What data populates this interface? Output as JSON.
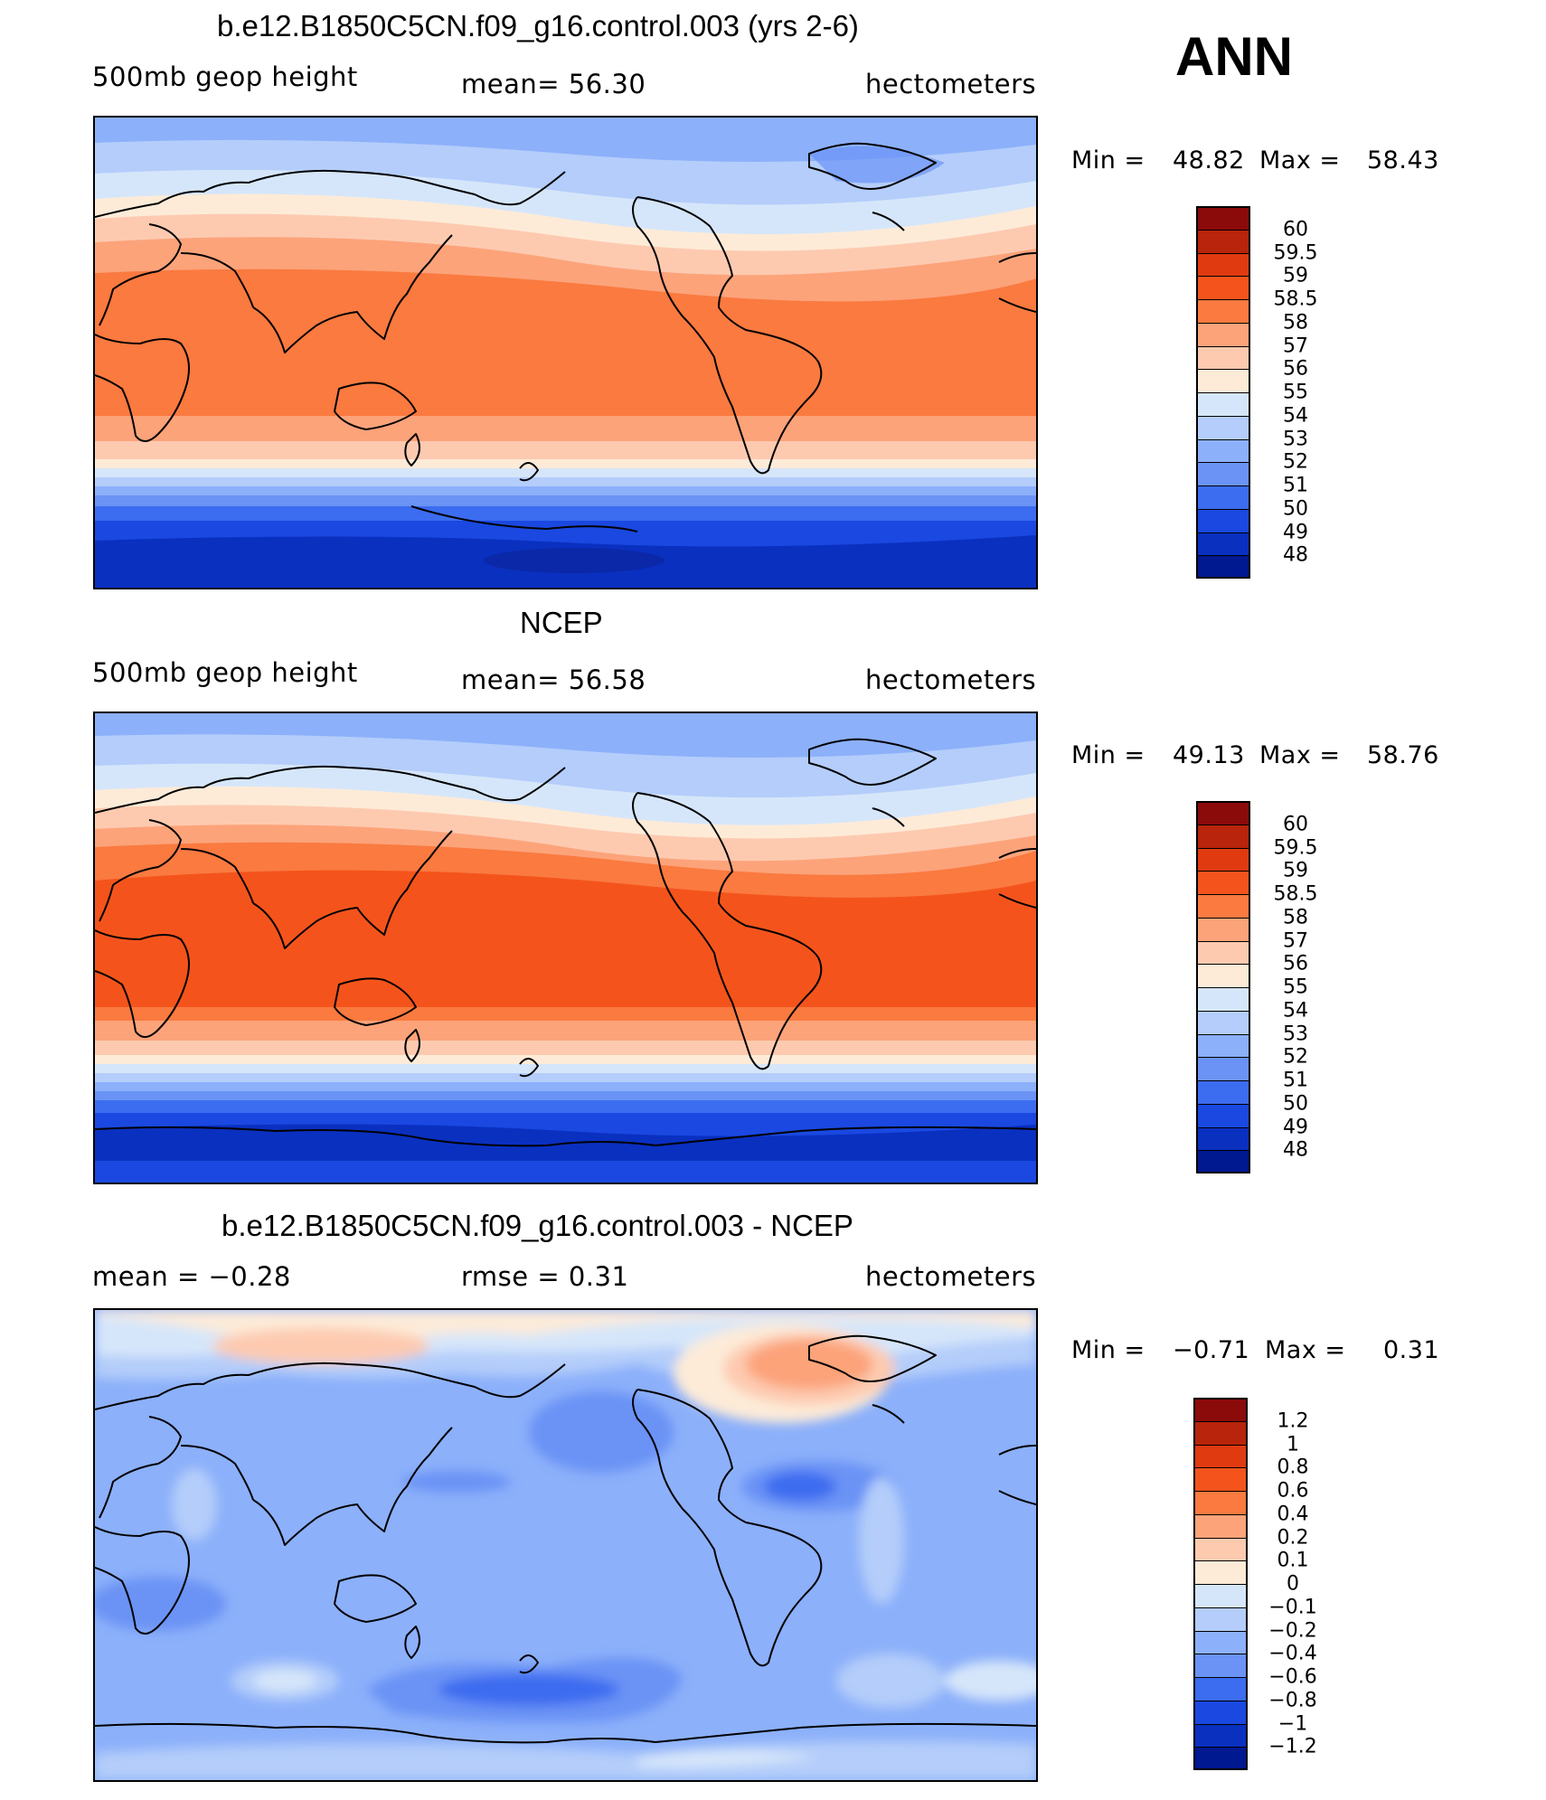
{
  "header": {
    "season": "ANN"
  },
  "panels": [
    {
      "id": "model",
      "title": "b.e12.B1850C5CN.f09_g16.control.003 (yrs 2-6)",
      "left_label": "500mb  geop  height",
      "center_label": "mean=   56.30",
      "units": "hectometers",
      "min_label": "Min  =",
      "min_value": "48.82",
      "max_label": "Max  =",
      "max_value": "58.43"
    },
    {
      "id": "obs",
      "title": "NCEP",
      "left_label": "500mb  geop  height",
      "center_label": "mean=   56.58",
      "units": "hectometers",
      "min_label": "Min  =",
      "min_value": "49.13",
      "max_label": "Max  =",
      "max_value": "58.76"
    },
    {
      "id": "diff",
      "title": "b.e12.B1850C5CN.f09_g16.control.003 - NCEP",
      "left_label": "mean  =    −0.28",
      "center_label": "rmse  =     0.31",
      "units": "hectometers",
      "min_label": "Min  =",
      "min_value": "−0.71",
      "max_label": "Max  =",
      "max_value": "0.31"
    }
  ],
  "colorbars": {
    "height": {
      "ticks": [
        "60",
        "59.5",
        "59",
        "58.5",
        "58",
        "57",
        "56",
        "55",
        "54",
        "53",
        "52",
        "51",
        "50",
        "49",
        "48"
      ],
      "colors": [
        "#8b0a0a",
        "#b8240c",
        "#e03a10",
        "#f4541c",
        "#fa7a40",
        "#fca37a",
        "#fdcab0",
        "#fdebd8",
        "#d6e6fa",
        "#b4cdfa",
        "#8cb0fa",
        "#6a93f5",
        "#3c6cf0",
        "#1a48e0",
        "#0a30c0",
        "#001890"
      ]
    },
    "diff": {
      "ticks": [
        "1.2",
        "1",
        "0.8",
        "0.6",
        "0.4",
        "0.2",
        "0.1",
        "0",
        "−0.1",
        "−0.2",
        "−0.4",
        "−0.6",
        "−0.8",
        "−1",
        "−1.2"
      ],
      "colors": [
        "#8b0a0a",
        "#b8240c",
        "#e03a10",
        "#f4541c",
        "#fa7a40",
        "#fca37a",
        "#fdcab0",
        "#fdebd8",
        "#d6e6fa",
        "#b4cdfa",
        "#8cb0fa",
        "#6a93f5",
        "#3c6cf0",
        "#1a48e0",
        "#0a30c0",
        "#001890"
      ]
    }
  },
  "chart_data": [
    {
      "type": "heatmap",
      "title": "b.e12.B1850C5CN.f09_g16.control.003 (yrs 2-6)",
      "variable": "500mb  geop  height",
      "units": "hectometers",
      "mean": 56.3,
      "min": 48.82,
      "max": 58.43,
      "contour_levels": [
        48,
        49,
        50,
        51,
        52,
        53,
        54,
        55,
        56,
        57,
        58,
        58.5,
        59,
        59.5,
        60
      ]
    },
    {
      "type": "heatmap",
      "title": "NCEP",
      "variable": "500mb  geop  height",
      "units": "hectometers",
      "mean": 56.58,
      "min": 49.13,
      "max": 58.76,
      "contour_levels": [
        48,
        49,
        50,
        51,
        52,
        53,
        54,
        55,
        56,
        57,
        58,
        58.5,
        59,
        59.5,
        60
      ]
    },
    {
      "type": "heatmap",
      "title": "b.e12.B1850C5CN.f09_g16.control.003 - NCEP",
      "units": "hectometers",
      "mean": -0.28,
      "rmse": 0.31,
      "min": -0.71,
      "max": 0.31,
      "contour_levels": [
        -1.2,
        -1,
        -0.8,
        -0.6,
        -0.4,
        -0.2,
        -0.1,
        0,
        0.1,
        0.2,
        0.4,
        0.6,
        0.8,
        1,
        1.2
      ]
    }
  ]
}
